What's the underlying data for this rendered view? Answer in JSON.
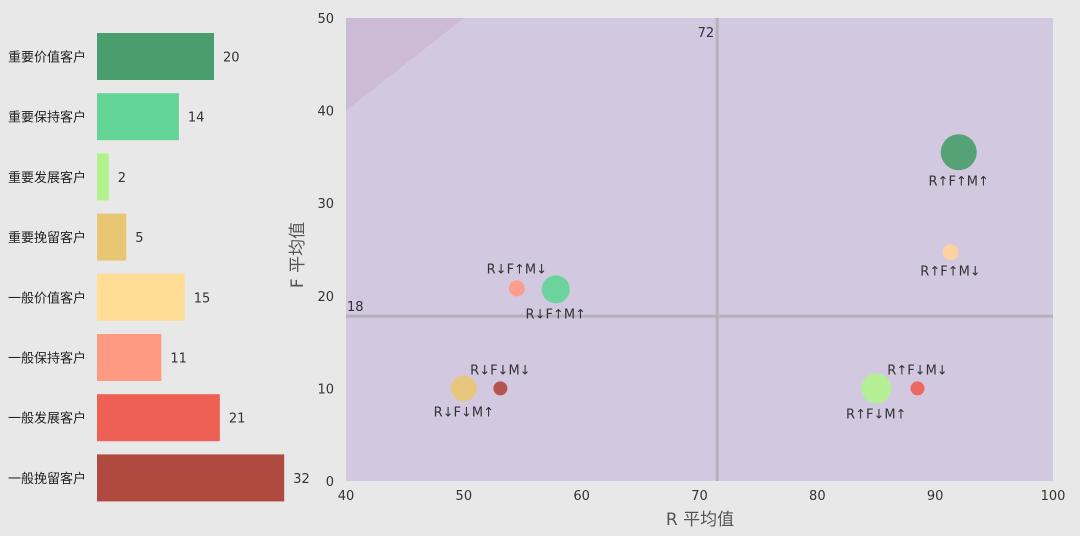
{
  "chart_data": [
    {
      "type": "bar",
      "orientation": "horizontal",
      "categories": [
        "重要价值客户",
        "重要保持客户",
        "重要发展客户",
        "重要挽留客户",
        "一般价值客户",
        "一般保持客户",
        "一般发展客户",
        "一般挽留客户"
      ],
      "values": [
        20,
        14,
        2,
        5,
        15,
        11,
        21,
        32
      ],
      "colors": [
        "#4a9e6e",
        "#62d495",
        "#b2f28c",
        "#e8c674",
        "#ffdd94",
        "#fe9a82",
        "#ef6054",
        "#b04a40"
      ]
    },
    {
      "type": "scatter",
      "xlabel": "R 平均值",
      "ylabel": "F 平均值",
      "xlim": [
        40,
        100
      ],
      "ylim": [
        0,
        50
      ],
      "xticks": [
        40,
        50,
        60,
        70,
        80,
        90,
        100
      ],
      "yticks": [
        0,
        10,
        20,
        30,
        40,
        50
      ],
      "reference_lines": {
        "x": 71.5,
        "y": 17.8,
        "x_label": "72",
        "y_label": "18"
      },
      "grid": false,
      "plot_background": "#d2c8e0",
      "points": [
        {
          "label": "R↑F↑M↑",
          "x": 92,
          "y": 35.5,
          "size": 18,
          "color": "#4a9e6e",
          "label_pos": "below"
        },
        {
          "label": "R↑F↑M↓",
          "x": 91.3,
          "y": 24.7,
          "size": 8,
          "color": "#ffd39a",
          "label_pos": "below"
        },
        {
          "label": "R↓F↑M↓",
          "x": 54.5,
          "y": 20.8,
          "size": 8,
          "color": "#fe9a82",
          "label_pos": "above"
        },
        {
          "label": "R↓F↑M↑",
          "x": 57.8,
          "y": 20.7,
          "size": 14,
          "color": "#62d495",
          "label_pos": "below"
        },
        {
          "label": "R↓F↓M↑",
          "x": 50,
          "y": 10,
          "size": 13,
          "color": "#e8c674",
          "label_pos": "below"
        },
        {
          "label": "R↓F↓M↓",
          "x": 53.1,
          "y": 10,
          "size": 7,
          "color": "#b04a40",
          "label_pos": "above"
        },
        {
          "label": "R↑F↓M↑",
          "x": 85,
          "y": 10,
          "size": 15,
          "color": "#b2f28c",
          "label_pos": "below"
        },
        {
          "label": "R↑F↓M↓",
          "x": 88.5,
          "y": 10,
          "size": 7,
          "color": "#ef6054",
          "label_pos": "above"
        }
      ]
    }
  ]
}
